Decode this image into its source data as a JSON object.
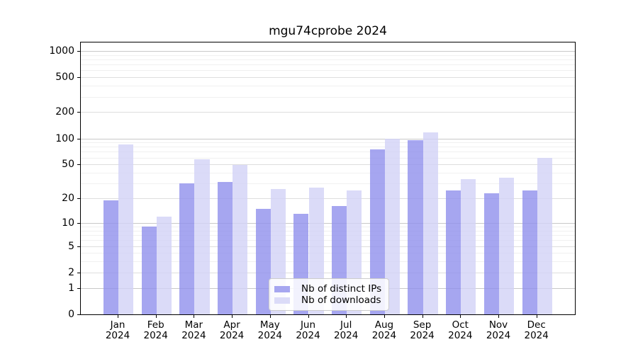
{
  "title": "mgu74cprobe 2024",
  "chart_data": {
    "type": "bar",
    "title": "mgu74cprobe 2024",
    "categories": [
      "Jan",
      "Feb",
      "Mar",
      "Apr",
      "May",
      "Jun",
      "Jul",
      "Aug",
      "Sep",
      "Oct",
      "Nov",
      "Dec"
    ],
    "year_label": "2024",
    "series": [
      {
        "name": "Nb of distinct IPs",
        "color": "rgba(144,144,236,0.8)",
        "swatch": "#a6a6f0",
        "values": [
          19,
          9,
          30,
          31,
          15,
          13,
          16,
          75,
          95,
          25,
          23,
          25
        ]
      },
      {
        "name": "Nb of downloads",
        "color": "rgba(210,210,246,0.8)",
        "swatch": "#dbdbf8",
        "values": [
          86,
          12,
          57,
          49,
          26,
          27,
          25,
          100,
          118,
          34,
          35,
          60
        ]
      }
    ],
    "xlabel": "",
    "ylabel": "",
    "y_scale": "log10(value+1)",
    "y_ticks": [
      0,
      1,
      2,
      5,
      10,
      20,
      50,
      100,
      200,
      500,
      1000
    ],
    "y_minor_gridlines": [
      3,
      4,
      6,
      7,
      8,
      9,
      30,
      40,
      60,
      70,
      80,
      90,
      300,
      400,
      600,
      700,
      800,
      900
    ],
    "ylim": [
      0,
      1290
    ],
    "grid": true,
    "legend_position": "lower center",
    "axis_color": "#000000",
    "gridline_color_pow10": "#c8c8c8",
    "gridline_color_major": "#dedede",
    "gridline_color_minor": "#f0f0f0"
  }
}
